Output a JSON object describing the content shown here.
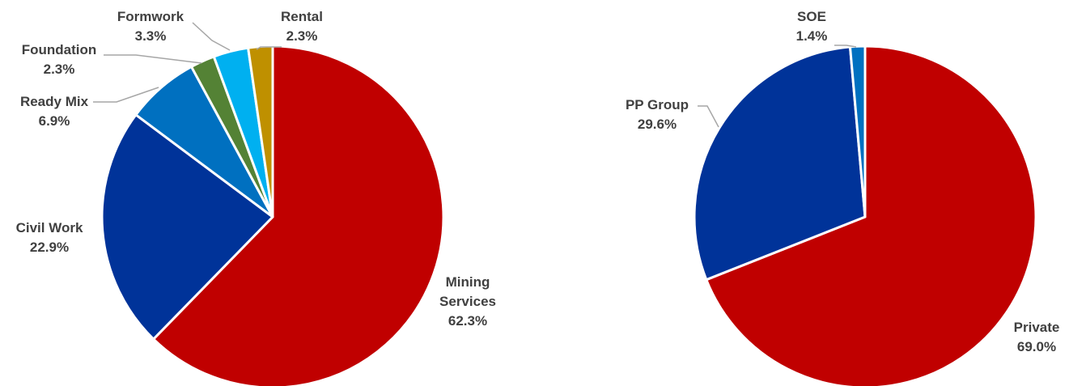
{
  "chart_data": [
    {
      "type": "pie",
      "title": "",
      "slices": [
        {
          "label": "Mining\nServices",
          "value": 62.3,
          "value_label": "62.3%",
          "color": "#c00000"
        },
        {
          "label": "Civil Work",
          "value": 22.9,
          "value_label": "22.9%",
          "color": "#003399"
        },
        {
          "label": "Ready Mix",
          "value": 6.9,
          "value_label": "6.9%",
          "color": "#0070c0"
        },
        {
          "label": "Foundation",
          "value": 2.3,
          "value_label": "2.3%",
          "color": "#548235"
        },
        {
          "label": "Formwork",
          "value": 3.3,
          "value_label": "3.3%",
          "color": "#00b0f0"
        },
        {
          "label": "Rental",
          "value": 2.3,
          "value_label": "2.3%",
          "color": "#bf9000"
        }
      ]
    },
    {
      "type": "pie",
      "title": "",
      "slices": [
        {
          "label": "Private",
          "value": 69.0,
          "value_label": "69.0%",
          "color": "#c00000"
        },
        {
          "label": "PP Group",
          "value": 29.6,
          "value_label": "29.6%",
          "color": "#003399"
        },
        {
          "label": "SOE",
          "value": 1.4,
          "value_label": "1.4%",
          "color": "#0070c0"
        }
      ]
    }
  ]
}
